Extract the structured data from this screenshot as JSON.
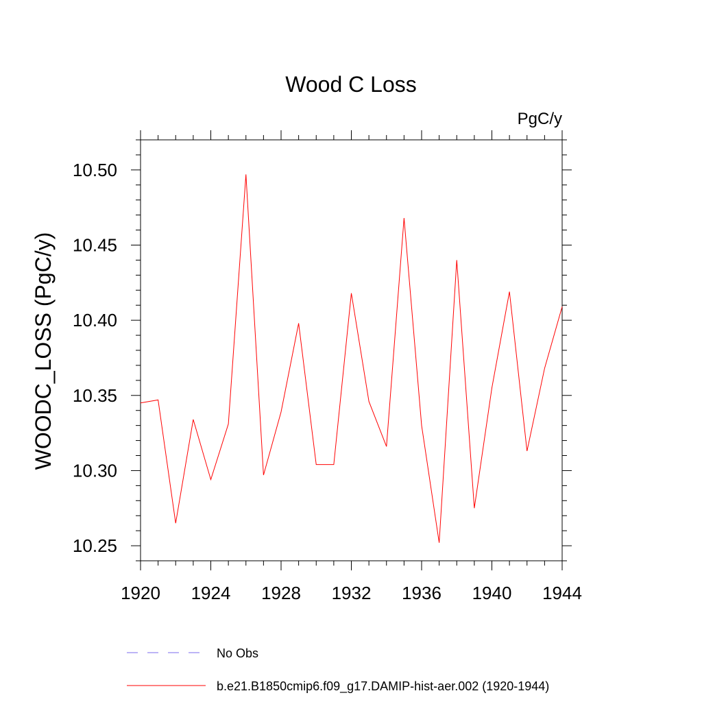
{
  "chart_data": {
    "type": "line",
    "title": "Wood C Loss",
    "units_label": "PgC/y",
    "ylabel": "WOODC_LOSS  (PgC/y)",
    "xlabel": "",
    "xlim": [
      1920,
      1944
    ],
    "ylim": [
      10.24,
      10.52
    ],
    "x_ticks": [
      1920,
      1924,
      1928,
      1932,
      1936,
      1940,
      1944
    ],
    "y_ticks": [
      "10.25",
      "10.30",
      "10.35",
      "10.40",
      "10.45",
      "10.50"
    ],
    "grid": false,
    "legend_position": "bottom",
    "series": [
      {
        "name": "b.e21.B1850cmip6.f09_g17.DAMIP-hist-aer.002 (1920-1944)",
        "color": "#ff0000",
        "dash": "solid",
        "x": [
          1920,
          1921,
          1922,
          1923,
          1924,
          1925,
          1926,
          1927,
          1928,
          1929,
          1930,
          1931,
          1932,
          1933,
          1934,
          1935,
          1936,
          1937,
          1938,
          1939,
          1940,
          1941,
          1942,
          1943,
          1944
        ],
        "y": [
          10.345,
          10.347,
          10.265,
          10.334,
          10.294,
          10.331,
          10.497,
          10.297,
          10.339,
          10.398,
          10.304,
          10.304,
          10.418,
          10.346,
          10.316,
          10.468,
          10.33,
          10.252,
          10.44,
          10.275,
          10.355,
          10.419,
          10.313,
          10.368,
          10.409
        ]
      }
    ],
    "legend": [
      {
        "label": "No Obs",
        "color": "#7b68ee",
        "dash": "dashed"
      },
      {
        "label": "b.e21.B1850cmip6.f09_g17.DAMIP-hist-aer.002 (1920-1944)",
        "color": "#ff0000",
        "dash": "solid"
      }
    ]
  }
}
